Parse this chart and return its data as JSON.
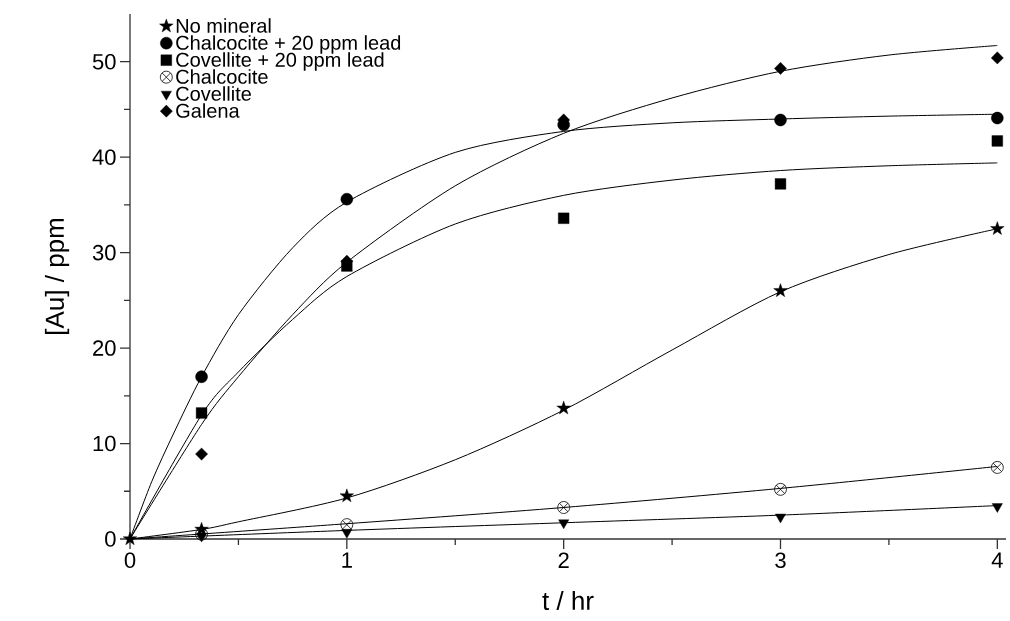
{
  "chart_data": {
    "type": "scatter",
    "xlabel": "t / hr",
    "ylabel": "[Au] / ppm",
    "xlim": [
      0,
      4.04
    ],
    "ylim": [
      0,
      55
    ],
    "xticks": [
      0,
      {
        "value": 0.5,
        "label": null
      },
      1,
      {
        "value": 1.5,
        "label": null
      },
      2,
      {
        "value": 2.5,
        "label": null
      },
      3,
      {
        "value": 3.5,
        "label": null
      },
      4
    ],
    "yticks": [
      0,
      {
        "value": 5,
        "label": null
      },
      10,
      {
        "value": 15,
        "label": null
      },
      20,
      {
        "value": 25,
        "label": null
      },
      30,
      {
        "value": 35,
        "label": null
      },
      40,
      {
        "value": 45,
        "label": null
      },
      50
    ],
    "legend": "top left",
    "line_style": "solid",
    "series": [
      {
        "name": "No mineral",
        "marker": "star",
        "color": "#000000",
        "x": [
          0,
          0.33,
          1,
          2,
          3,
          4
        ],
        "values": [
          0,
          1,
          4.5,
          13.7,
          26,
          32.5
        ]
      },
      {
        "name": "Chalcocite + 20 ppm lead",
        "marker": "circle",
        "color": "#000000",
        "x": [
          0.33,
          1,
          2,
          3,
          4
        ],
        "values": [
          17,
          35.6,
          43.4,
          43.9,
          44.1
        ]
      },
      {
        "name": "Covellite + 20 ppm lead",
        "marker": "square",
        "color": "#000000",
        "x": [
          0.33,
          1,
          2,
          3,
          4
        ],
        "values": [
          13.2,
          28.6,
          33.6,
          37.2,
          41.7
        ]
      },
      {
        "name": "Chalcocite",
        "marker": "cross",
        "color": "#000000",
        "x": [
          0.33,
          1,
          2,
          3,
          4
        ],
        "values": [
          0.5,
          1.5,
          3.3,
          5.2,
          7.5
        ]
      },
      {
        "name": "Covellite",
        "marker": "triangle",
        "color": "#000000",
        "x": [
          0.33,
          1,
          2,
          3,
          4
        ],
        "values": [
          0.3,
          0.7,
          1.7,
          2.3,
          3.4
        ]
      },
      {
        "name": "Galena",
        "marker": "diamond",
        "color": "#000000",
        "x": [
          0.33,
          1,
          2,
          3,
          4
        ],
        "values": [
          8.9,
          29.1,
          43.9,
          49.3,
          50.4
        ]
      },
      {
        "type": "line",
        "color": "#000000",
        "x": [
          0,
          0.33,
          0.5,
          1,
          1.5,
          2,
          2.5,
          3,
          3.5,
          4
        ],
        "values": [
          0,
          1,
          1.8,
          4.3,
          8.3,
          13.5,
          19.8,
          25.9,
          29.8,
          32.5
        ]
      },
      {
        "type": "line",
        "color": "#000000",
        "x": [
          0,
          0.1,
          0.2,
          0.33,
          0.5,
          0.75,
          1,
          1.5,
          2,
          2.5,
          3,
          3.5,
          4
        ],
        "values": [
          0,
          6,
          11,
          17,
          23.5,
          30.5,
          35.3,
          40.5,
          42.7,
          43.6,
          44,
          44.3,
          44.5
        ]
      },
      {
        "type": "line",
        "color": "#000000",
        "x": [
          0,
          0.33,
          0.5,
          0.75,
          1,
          1.5,
          2,
          2.5,
          3,
          3.5,
          4
        ],
        "values": [
          0,
          13,
          17.5,
          23,
          27.5,
          33,
          36,
          37.6,
          38.6,
          39.1,
          39.4
        ]
      },
      {
        "type": "line",
        "color": "#000000",
        "x": [
          0,
          1,
          2,
          3,
          4
        ],
        "values": [
          0,
          1.6,
          3.3,
          5.3,
          7.6
        ]
      },
      {
        "type": "line",
        "color": "#000000",
        "x": [
          0,
          1,
          2,
          3,
          4
        ],
        "values": [
          0,
          0.9,
          1.7,
          2.5,
          3.5
        ]
      },
      {
        "type": "line",
        "color": "#000000",
        "x": [
          0,
          0.33,
          0.5,
          0.75,
          1,
          1.5,
          2,
          2.5,
          3,
          3.5,
          4
        ],
        "values": [
          0,
          12,
          17,
          23.5,
          29,
          37,
          42.5,
          46.2,
          49,
          50.7,
          51.7
        ]
      }
    ]
  }
}
